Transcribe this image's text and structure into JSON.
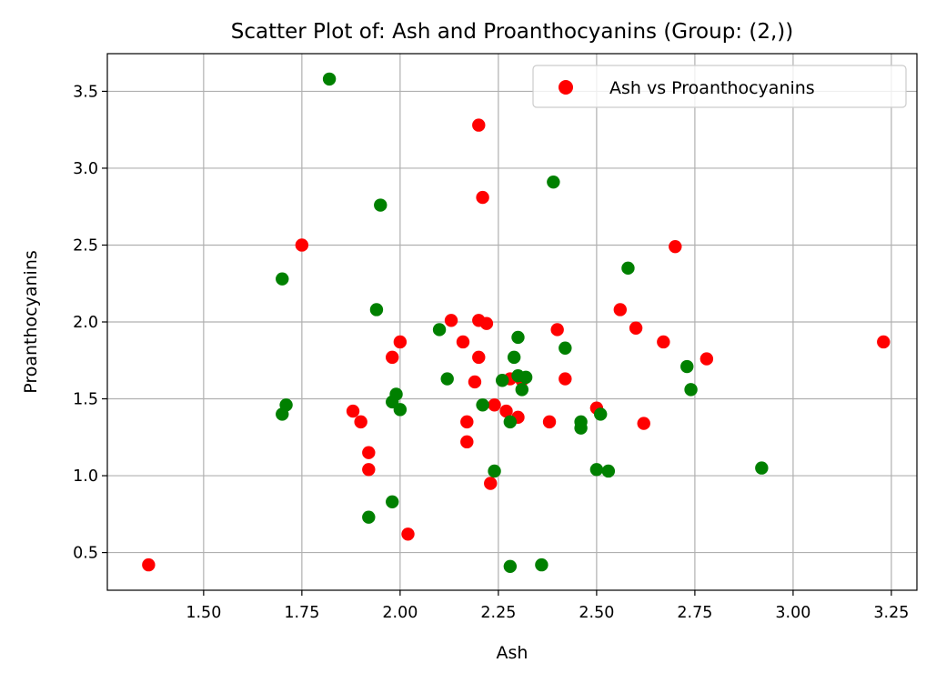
{
  "chart_data": {
    "type": "scatter",
    "title": "Scatter Plot of: Ash and Proanthocyanins (Group: (2,))",
    "xlabel": "Ash",
    "ylabel": "Proanthocyanins",
    "xlim": [
      1.255,
      3.315
    ],
    "ylim": [
      0.255,
      3.745
    ],
    "xticks": [
      1.5,
      1.75,
      2.0,
      2.25,
      2.5,
      2.75,
      3.0,
      3.25
    ],
    "xtick_labels": [
      "1.50",
      "1.75",
      "2.00",
      "2.25",
      "2.50",
      "2.75",
      "3.00",
      "3.25"
    ],
    "yticks": [
      0.5,
      1.0,
      1.5,
      2.0,
      2.5,
      3.0,
      3.5
    ],
    "ytick_labels": [
      "0.5",
      "1.0",
      "1.5",
      "2.0",
      "2.5",
      "3.0",
      "3.5"
    ],
    "grid": true,
    "legend_position": "top-right",
    "series": [
      {
        "name": "Ash vs Proanthocyanins",
        "color": "#ff0000",
        "x": [
          1.36,
          1.75,
          1.88,
          1.9,
          1.92,
          1.92,
          1.98,
          2.0,
          2.02,
          2.13,
          2.16,
          2.17,
          2.17,
          2.19,
          2.2,
          2.2,
          2.2,
          2.21,
          2.22,
          2.23,
          2.24,
          2.27,
          2.28,
          2.3,
          2.31,
          2.38,
          2.4,
          2.42,
          2.5,
          2.56,
          2.6,
          2.62,
          2.67,
          2.7,
          2.78,
          3.23
        ],
        "y": [
          0.42,
          2.5,
          1.42,
          1.35,
          1.15,
          1.04,
          1.77,
          1.87,
          0.62,
          2.01,
          1.87,
          1.35,
          1.22,
          1.61,
          3.28,
          2.01,
          1.77,
          2.81,
          1.99,
          0.95,
          1.46,
          1.42,
          1.63,
          1.38,
          1.62,
          1.35,
          1.95,
          1.63,
          1.44,
          2.08,
          1.96,
          1.34,
          1.87,
          2.49,
          1.76,
          1.87
        ]
      },
      {
        "name": "",
        "color": "#008000",
        "x": [
          1.7,
          1.7,
          1.71,
          1.82,
          1.92,
          1.94,
          1.95,
          1.98,
          1.98,
          1.99,
          2.0,
          2.1,
          2.12,
          2.21,
          2.24,
          2.26,
          2.28,
          2.28,
          2.29,
          2.3,
          2.3,
          2.31,
          2.32,
          2.36,
          2.39,
          2.42,
          2.46,
          2.46,
          2.5,
          2.51,
          2.53,
          2.58,
          2.73,
          2.74,
          2.92
        ],
        "y": [
          2.28,
          1.4,
          1.46,
          3.58,
          0.73,
          2.08,
          2.76,
          0.83,
          1.48,
          1.53,
          1.43,
          1.95,
          1.63,
          1.46,
          1.03,
          1.62,
          1.35,
          0.41,
          1.77,
          1.9,
          1.65,
          1.56,
          1.64,
          0.42,
          2.91,
          1.83,
          1.35,
          1.31,
          1.04,
          1.4,
          1.03,
          2.35,
          1.71,
          1.56,
          1.05
        ]
      }
    ]
  }
}
